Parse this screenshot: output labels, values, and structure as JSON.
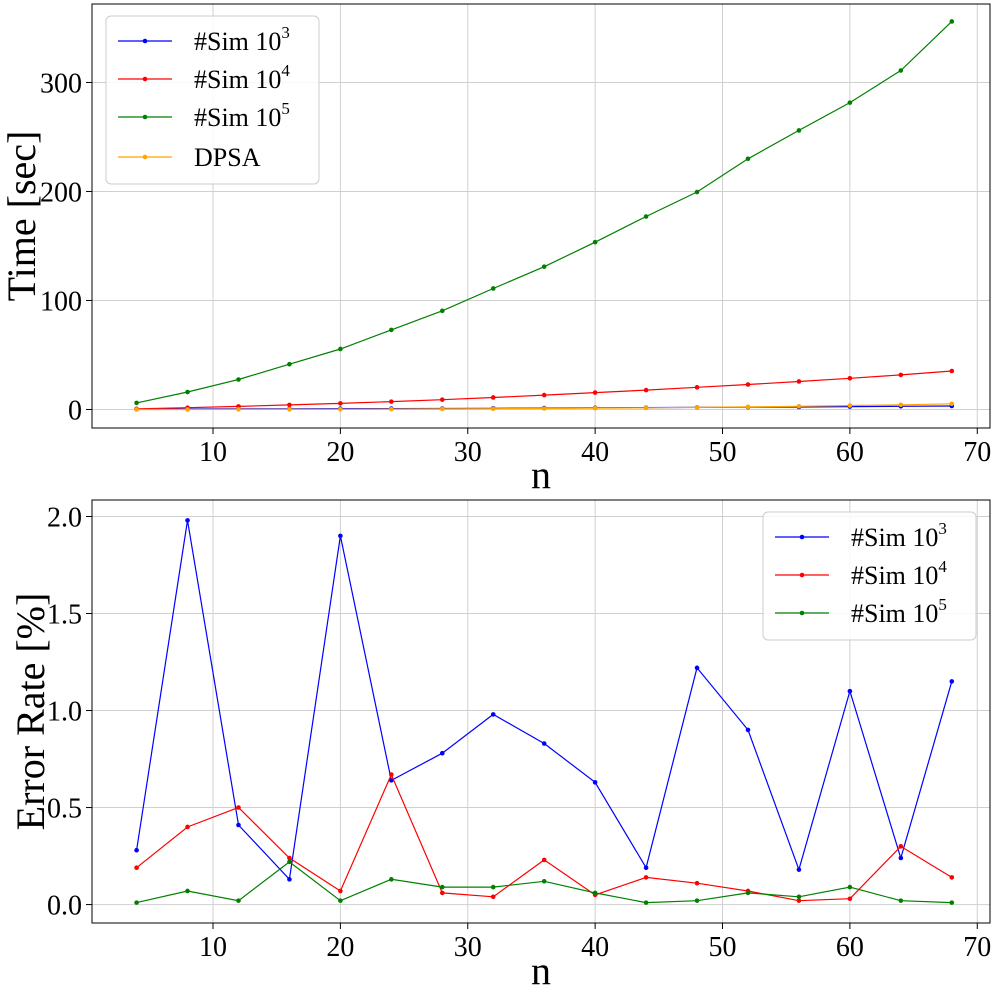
{
  "chart_data": [
    {
      "type": "line",
      "xlabel": "n",
      "ylabel": "Time [sec]",
      "x": [
        4,
        8,
        12,
        16,
        20,
        24,
        28,
        32,
        36,
        40,
        44,
        48,
        52,
        56,
        60,
        64,
        68
      ],
      "xlim": [
        0.5,
        71
      ],
      "ylim": [
        -17,
        372
      ],
      "xticks": [
        10,
        20,
        30,
        40,
        50,
        60,
        70
      ],
      "yticks": [
        0,
        100,
        200,
        300
      ],
      "grid": true,
      "legend_position": "top-left",
      "series": [
        {
          "name": "#Sim 10",
          "exponent": "3",
          "color": "#0000ff",
          "values": [
            0.2,
            0.4,
            0.5,
            0.6,
            0.7,
            0.8,
            0.9,
            1.1,
            1.3,
            1.5,
            1.7,
            1.9,
            2.1,
            2.3,
            2.6,
            2.9,
            3.2
          ]
        },
        {
          "name": "#Sim 10",
          "exponent": "4",
          "color": "#ff0000",
          "values": [
            0.6,
            1.6,
            2.8,
            4.2,
            5.6,
            7.2,
            9.0,
            11.0,
            13.2,
            15.5,
            17.8,
            20.3,
            22.9,
            25.7,
            28.6,
            31.7,
            35.3
          ]
        },
        {
          "name": "#Sim 10",
          "exponent": "5",
          "color": "#008000",
          "values": [
            6,
            16,
            27.5,
            41.5,
            55.5,
            73,
            90.5,
            111,
            131,
            153.5,
            177,
            199.5,
            230,
            256,
            281.5,
            311,
            356
          ]
        },
        {
          "name": "DPSA",
          "exponent": "",
          "color": "#ffa500",
          "values": [
            0.0,
            0.0,
            0.1,
            0.1,
            0.2,
            0.3,
            0.5,
            0.7,
            0.9,
            1.2,
            1.5,
            1.9,
            2.4,
            2.9,
            3.6,
            4.3,
            5.2
          ]
        }
      ]
    },
    {
      "type": "line",
      "xlabel": "n",
      "ylabel": "Error Rate [%]",
      "x": [
        4,
        8,
        12,
        16,
        20,
        24,
        28,
        32,
        36,
        40,
        44,
        48,
        52,
        56,
        60,
        64,
        68
      ],
      "xlim": [
        0.5,
        71
      ],
      "ylim": [
        -0.095,
        2.085
      ],
      "xticks": [
        10,
        20,
        30,
        40,
        50,
        60,
        70
      ],
      "yticks": [
        0.0,
        0.5,
        1.0,
        1.5,
        2.0
      ],
      "grid": true,
      "legend_position": "top-right",
      "series": [
        {
          "name": "#Sim 10",
          "exponent": "3",
          "color": "#0000ff",
          "values": [
            0.28,
            1.98,
            0.41,
            0.13,
            1.9,
            0.64,
            0.78,
            0.98,
            0.83,
            0.63,
            0.19,
            1.22,
            0.9,
            0.18,
            1.1,
            0.24,
            1.15
          ]
        },
        {
          "name": "#Sim 10",
          "exponent": "4",
          "color": "#ff0000",
          "values": [
            0.19,
            0.4,
            0.5,
            0.24,
            0.07,
            0.67,
            0.06,
            0.04,
            0.23,
            0.05,
            0.14,
            0.11,
            0.07,
            0.02,
            0.03,
            0.3,
            0.14
          ]
        },
        {
          "name": "#Sim 10",
          "exponent": "5",
          "color": "#008000",
          "values": [
            0.01,
            0.07,
            0.02,
            0.22,
            0.02,
            0.13,
            0.09,
            0.09,
            0.12,
            0.06,
            0.01,
            0.02,
            0.06,
            0.04,
            0.09,
            0.02,
            0.01
          ]
        }
      ]
    }
  ]
}
